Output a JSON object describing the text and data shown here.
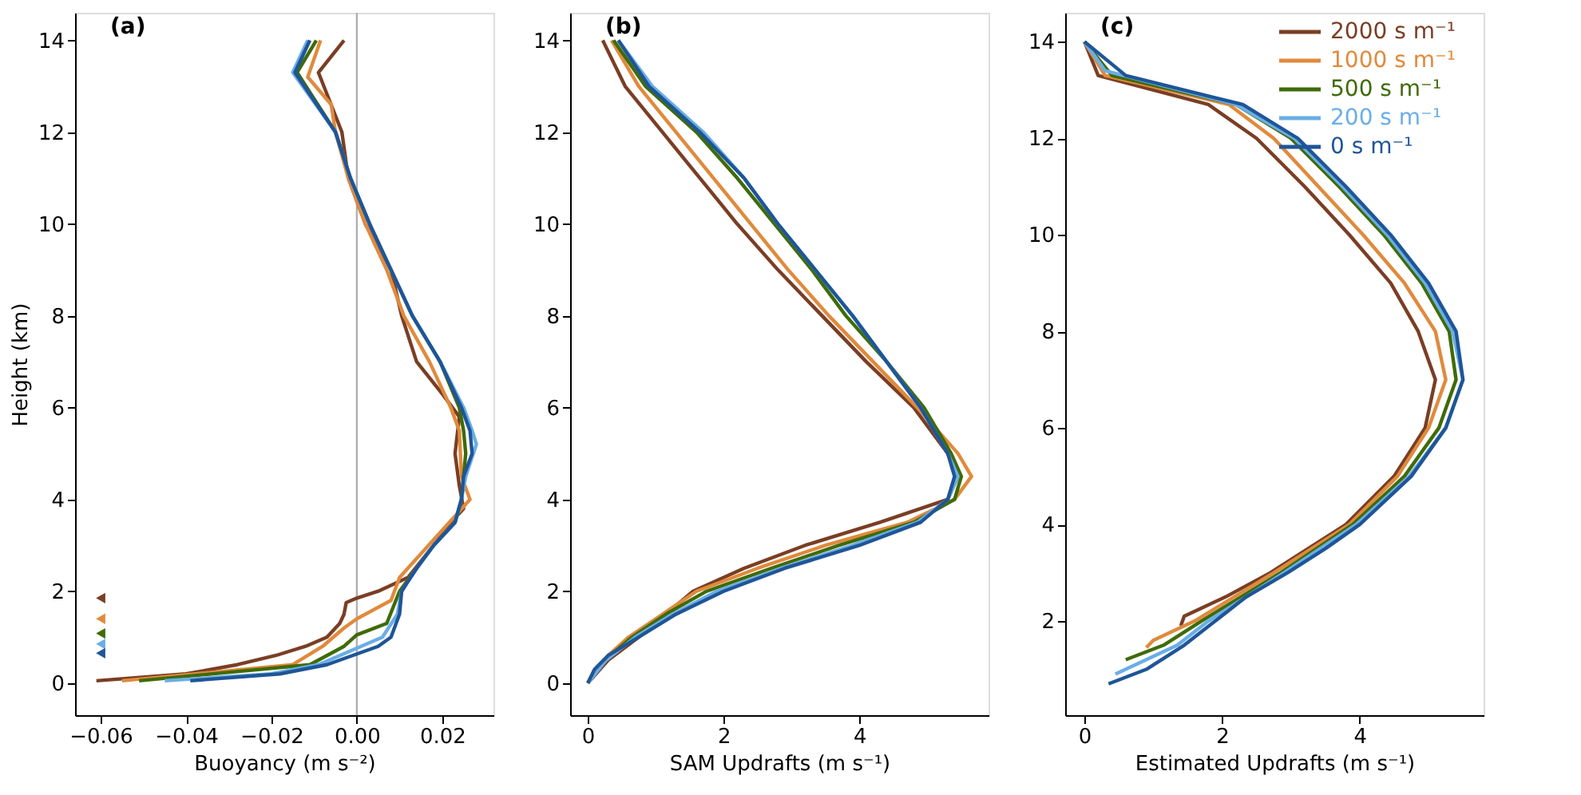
{
  "chart_data": [
    {
      "type": "line",
      "title": "(a)",
      "xlabel": "Buoyancy (m s⁻²)",
      "ylabel": "Height (km)",
      "xlim": [
        -0.066,
        0.032
      ],
      "ylim": [
        -0.7,
        14.6
      ],
      "xticks": [
        {
          "value": -0.06,
          "label": "−0.06"
        },
        {
          "value": -0.04,
          "label": "−0.04"
        },
        {
          "value": -0.02,
          "label": "−0.02"
        },
        {
          "value": 0,
          "label": "0.00"
        },
        {
          "value": 0.02,
          "label": "0.02"
        }
      ],
      "yticks": [
        0,
        2,
        4,
        6,
        8,
        10,
        12,
        14
      ],
      "grid": false,
      "line_style": "solid",
      "ref_lines": [
        {
          "axis": "x",
          "value": 0,
          "color": "#b0b0b0"
        }
      ],
      "series": [
        {
          "color": "#7a3e24",
          "x": [
            -0.061,
            -0.04,
            -0.028,
            -0.019,
            -0.012,
            -0.007,
            -0.004,
            -0.003,
            -0.0025,
            0.0,
            0.005,
            0.012,
            0.018,
            0.022,
            0.025,
            0.024,
            0.023,
            0.024,
            0.02,
            0.014,
            0.0105,
            0.008,
            0.002,
            -0.002,
            -0.0035,
            -0.009,
            -0.003
          ],
          "values": [
            0.05,
            0.2,
            0.4,
            0.6,
            0.8,
            1.0,
            1.3,
            1.5,
            1.75,
            1.85,
            2.0,
            2.3,
            3.0,
            3.5,
            3.8,
            4.3,
            5.0,
            5.8,
            6.3,
            7.0,
            8.0,
            9.0,
            10.0,
            11.0,
            12.0,
            13.3,
            14.0
          ]
        },
        {
          "color": "#e08a3c",
          "x": [
            -0.055,
            -0.015,
            -0.008,
            -0.003,
            0.0,
            0.008,
            0.01,
            0.0265,
            0.0245,
            0.024,
            0.022,
            0.017,
            0.011,
            0.007,
            0.002,
            -0.002,
            -0.005,
            -0.006,
            -0.0115,
            -0.0085
          ],
          "values": [
            0.05,
            0.4,
            0.8,
            1.2,
            1.4,
            1.8,
            2.3,
            4.0,
            4.5,
            5.5,
            6.0,
            7.0,
            8.0,
            9.0,
            10.0,
            11.0,
            12.0,
            12.6,
            13.2,
            14.0
          ]
        },
        {
          "color": "#3f6b08",
          "x": [
            -0.051,
            -0.011,
            -0.003,
            0.0,
            0.007,
            0.01,
            0.014,
            0.018,
            0.023,
            0.0245,
            0.025,
            0.0255,
            0.025,
            0.024,
            0.0195,
            0.013,
            0.008,
            0.003,
            -0.0015,
            -0.005,
            -0.014,
            -0.0095
          ],
          "values": [
            0.05,
            0.4,
            0.8,
            1.05,
            1.3,
            2.0,
            2.5,
            3.0,
            3.5,
            4.0,
            4.5,
            5.0,
            5.5,
            6.0,
            7.0,
            8.0,
            9.0,
            10.0,
            11.0,
            12.0,
            13.3,
            14.0
          ]
        },
        {
          "color": "#6aaee6",
          "x": [
            -0.045,
            -0.02,
            -0.009,
            -0.004,
            0.001,
            0.006,
            0.0095,
            0.0105,
            0.014,
            0.018,
            0.023,
            0.0245,
            0.0255,
            0.028,
            0.027,
            0.025,
            0.0195,
            0.013,
            0.008,
            0.003,
            -0.0015,
            -0.005,
            -0.015,
            -0.0115
          ],
          "values": [
            0.05,
            0.2,
            0.4,
            0.6,
            0.8,
            1.0,
            1.5,
            2.0,
            2.5,
            3.0,
            3.5,
            4.0,
            4.5,
            5.2,
            5.5,
            6.0,
            7.0,
            8.0,
            9.0,
            10.0,
            11.0,
            12.0,
            13.3,
            14.0
          ]
        },
        {
          "color": "#1f5597",
          "x": [
            -0.039,
            -0.018,
            -0.007,
            -0.001,
            0.005,
            0.008,
            0.01,
            0.0105,
            0.014,
            0.018,
            0.023,
            0.0245,
            0.025,
            0.027,
            0.0265,
            0.0245,
            0.0195,
            0.013,
            0.008,
            0.003,
            -0.0015,
            -0.005,
            -0.0145,
            -0.011
          ],
          "values": [
            0.05,
            0.2,
            0.4,
            0.6,
            0.8,
            1.0,
            1.5,
            2.0,
            2.5,
            3.0,
            3.5,
            4.0,
            4.5,
            5.0,
            5.5,
            6.0,
            7.0,
            8.0,
            9.0,
            10.0,
            11.0,
            12.0,
            13.3,
            14.0
          ]
        },
        {
          "type": "scatter",
          "marker": "triangle",
          "colors": [
            "#7a3e24",
            "#e08a3c",
            "#3f6b08",
            "#6aaee6",
            "#1f5597"
          ],
          "x": [
            -0.06,
            -0.06,
            -0.06,
            -0.06,
            -0.06
          ],
          "values": [
            1.85,
            1.4,
            1.08,
            0.85,
            0.65
          ]
        }
      ]
    },
    {
      "type": "line",
      "title": "(b)",
      "xlabel": "SAM Updrafts (m s⁻¹)",
      "xlim": [
        -0.26,
        5.9
      ],
      "ylim": [
        -0.7,
        14.6
      ],
      "xticks": [
        0,
        2,
        4
      ],
      "yticks": [
        0,
        2,
        4,
        6,
        8,
        10,
        12,
        14
      ],
      "grid": false,
      "line_style": "solid",
      "series": [
        {
          "color": "#7a3e24",
          "x": [
            0,
            0.3,
            0.75,
            1.15,
            1.55,
            2.3,
            3.2,
            4.3,
            5.3,
            5.45,
            5.3,
            4.8,
            4.1,
            3.45,
            2.8,
            2.2,
            1.65,
            1.1,
            0.55,
            0.22
          ],
          "values": [
            0,
            0.5,
            1,
            1.5,
            2,
            2.5,
            3,
            3.5,
            4,
            4.5,
            5,
            6,
            7,
            8,
            9,
            10,
            11,
            12,
            13,
            14
          ]
        },
        {
          "color": "#e08a3c",
          "x": [
            0,
            0.3,
            0.6,
            1.1,
            1.6,
            2.5,
            3.5,
            4.7,
            5.4,
            5.65,
            5.45,
            4.85,
            4.2,
            3.55,
            2.95,
            2.4,
            1.85,
            1.3,
            0.75,
            0.35
          ],
          "values": [
            0,
            0.6,
            1,
            1.5,
            2,
            2.5,
            3,
            3.5,
            4,
            4.5,
            5,
            6,
            7,
            8,
            9,
            10,
            11,
            12,
            13,
            14
          ]
        },
        {
          "color": "#3f6b08",
          "x": [
            0,
            0.25,
            0.65,
            1.15,
            1.75,
            2.7,
            3.7,
            4.8,
            5.4,
            5.5,
            5.35,
            4.95,
            4.4,
            3.8,
            3.3,
            2.75,
            2.2,
            1.6,
            0.85,
            0.38
          ],
          "values": [
            0,
            0.5,
            1,
            1.5,
            2,
            2.5,
            3,
            3.5,
            4,
            4.5,
            5,
            6,
            7,
            8,
            9,
            10,
            11,
            12,
            13,
            14
          ]
        },
        {
          "color": "#6aaee6",
          "x": [
            0,
            0.27,
            0.7,
            1.25,
            1.9,
            2.85,
            3.9,
            4.85,
            5.3,
            5.45,
            5.3,
            4.9,
            4.4,
            3.9,
            3.35,
            2.8,
            2.3,
            1.7,
            0.95,
            0.45
          ],
          "values": [
            0,
            0.5,
            1,
            1.5,
            2,
            2.5,
            3,
            3.5,
            4,
            4.5,
            5,
            6,
            7,
            8,
            9,
            10,
            11,
            12,
            13,
            14
          ]
        },
        {
          "color": "#1f5597",
          "x": [
            0,
            0.1,
            0.3,
            0.75,
            1.3,
            2.0,
            2.9,
            4.0,
            4.9,
            5.3,
            5.4,
            5.3,
            4.9,
            4.4,
            3.9,
            3.35,
            2.8,
            2.3,
            1.65,
            0.9,
            0.45
          ],
          "values": [
            0,
            0.3,
            0.6,
            1,
            1.5,
            2,
            2.5,
            3,
            3.5,
            4,
            4.5,
            5,
            6,
            7,
            8,
            9,
            10,
            11,
            12,
            13,
            14
          ]
        }
      ]
    },
    {
      "type": "line",
      "title": "(c)",
      "xlabel": "Estimated Updrafts (m s⁻¹)",
      "xlim": [
        -0.28,
        5.8
      ],
      "ylim": [
        0.05,
        14.6
      ],
      "xticks": [
        0,
        2,
        4
      ],
      "yticks": [
        2,
        4,
        6,
        8,
        10,
        12,
        14
      ],
      "grid": false,
      "line_style": "solid",
      "legend": "top right",
      "series": [
        {
          "name": "2000 s m⁻¹",
          "color": "#7a3e24",
          "x": [
            1.4,
            1.45,
            2.05,
            2.7,
            3.8,
            4.5,
            4.95,
            5.1,
            4.85,
            4.45,
            3.85,
            3.2,
            2.5,
            1.8,
            0.2,
            0
          ],
          "values": [
            1.9,
            2.1,
            2.5,
            3,
            4,
            5,
            6,
            7,
            8,
            9,
            10,
            11,
            12,
            12.7,
            13.3,
            14
          ]
        },
        {
          "name": "1000 s m⁻¹",
          "color": "#e08a3c",
          "x": [
            0.9,
            1.0,
            1.6,
            2.75,
            3.85,
            4.55,
            5.0,
            5.25,
            5.1,
            4.65,
            4.05,
            3.4,
            2.75,
            2.1,
            0.3,
            0
          ],
          "values": [
            1.45,
            1.6,
            2,
            3,
            4,
            5,
            6,
            7,
            8,
            9,
            10,
            11,
            12,
            12.7,
            13.3,
            14
          ]
        },
        {
          "name": "500 s m⁻¹",
          "color": "#3f6b08",
          "x": [
            0.6,
            1.15,
            1.7,
            2.85,
            3.9,
            4.65,
            5.15,
            5.4,
            5.3,
            4.9,
            4.35,
            3.7,
            3.0,
            2.2,
            0.4,
            0
          ],
          "values": [
            1.2,
            1.5,
            2,
            3,
            4,
            5,
            6,
            7,
            8,
            9,
            10,
            11,
            12,
            12.7,
            13.3,
            14
          ]
        },
        {
          "name": "200 s m⁻¹",
          "color": "#6aaee6",
          "x": [
            0.45,
            1.35,
            1.8,
            2.9,
            3.95,
            4.72,
            5.25,
            5.5,
            5.35,
            4.95,
            4.4,
            3.75,
            3.05,
            2.2,
            0.3,
            0
          ],
          "values": [
            0.9,
            1.5,
            2,
            3,
            4,
            5,
            6,
            7,
            8,
            9,
            10,
            11,
            12,
            12.7,
            13.4,
            14
          ]
        },
        {
          "name": "0 s m⁻¹",
          "color": "#1f5597",
          "x": [
            0.35,
            0.9,
            1.45,
            1.9,
            2.35,
            2.95,
            3.5,
            4.0,
            4.75,
            5.25,
            5.5,
            5.4,
            5.0,
            4.45,
            3.8,
            3.1,
            2.3,
            0.6,
            0
          ],
          "values": [
            0.7,
            1.0,
            1.5,
            2,
            2.5,
            3,
            3.5,
            4,
            5,
            6,
            7,
            8,
            9,
            10,
            11,
            12,
            12.7,
            13.3,
            14
          ]
        }
      ]
    }
  ]
}
